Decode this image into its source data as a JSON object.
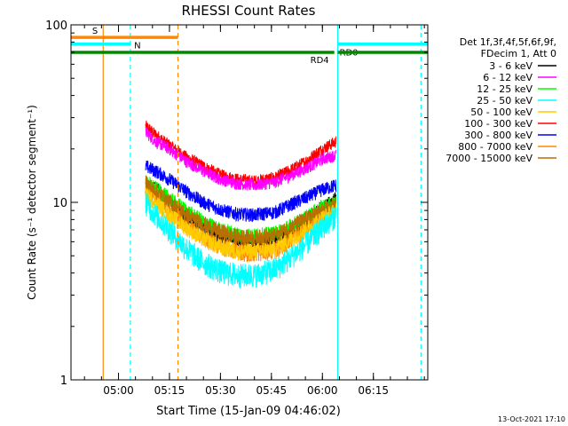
{
  "chart_data": {
    "type": "line",
    "title": "RHESSI Count Rates",
    "xlabel": "Start Time (15-Jan-09 04:46:02)",
    "ylabel": "Count Rate (s⁻¹ detector segment⁻¹)",
    "yscale": "log",
    "ylim": [
      1,
      100
    ],
    "xlim": [
      "04:46:02",
      "06:31:00"
    ],
    "x_ticks": [
      "05:00",
      "05:15",
      "05:30",
      "05:45",
      "06:00",
      "06:15"
    ],
    "y_ticks": [
      "1",
      "10",
      "100"
    ],
    "legend_header": [
      "Det 1f,3f,4f,5f,6f,9f,",
      "FDecim 1, Att 0"
    ],
    "legend_position": "right",
    "grid": false,
    "x_minor_step_minutes": 5,
    "series": [
      {
        "name": "3 - 6 keV",
        "color": "#000000",
        "x": [
          "05:08",
          "05:11",
          "05:15",
          "05:20",
          "05:25",
          "05:30",
          "05:35",
          "05:40",
          "05:46",
          "05:50",
          "05:55",
          "06:00",
          "06:04"
        ],
        "values": [
          11,
          12,
          10,
          8.5,
          7.2,
          6.5,
          6.1,
          6.0,
          6.2,
          6.8,
          7.8,
          9.3,
          10.5
        ]
      },
      {
        "name": "6 - 12 keV",
        "color": "#ff00ff",
        "x": [
          "05:08",
          "05:11",
          "05:15",
          "05:20",
          "05:25",
          "05:30",
          "05:35",
          "05:40",
          "05:46",
          "05:50",
          "05:55",
          "06:00",
          "06:04"
        ],
        "values": [
          25,
          22,
          20,
          17,
          15,
          13.5,
          12.8,
          12.5,
          13,
          14,
          15.5,
          17.5,
          18.5
        ]
      },
      {
        "name": "12 - 25 keV",
        "color": "#00ff00",
        "x": [
          "05:08",
          "05:11",
          "05:15",
          "05:20",
          "05:25",
          "05:30",
          "05:35",
          "05:40",
          "05:46",
          "05:50",
          "05:55",
          "06:00",
          "06:04"
        ],
        "values": [
          13,
          12,
          10.5,
          9,
          7.8,
          7,
          6.6,
          6.5,
          6.7,
          7.3,
          8.2,
          9.5,
          10
        ]
      },
      {
        "name": "25 - 50 keV",
        "color": "#00ffff",
        "x": [
          "05:08",
          "05:11",
          "05:15",
          "05:20",
          "05:25",
          "05:30",
          "05:35",
          "05:40",
          "05:46",
          "05:50",
          "05:55",
          "06:00",
          "06:04"
        ],
        "values": [
          10,
          8.5,
          7,
          5.5,
          4.6,
          4.1,
          3.9,
          3.9,
          4.2,
          4.8,
          5.8,
          7.2,
          8.5
        ]
      },
      {
        "name": "50 - 100 keV",
        "color": "#ffcc00",
        "x": [
          "05:08",
          "05:11",
          "05:15",
          "05:20",
          "05:25",
          "05:30",
          "05:35",
          "05:40",
          "05:46",
          "05:50",
          "05:55",
          "06:00",
          "06:04"
        ],
        "values": [
          11,
          10,
          8.5,
          7.2,
          6.2,
          5.6,
          5.3,
          5.3,
          5.5,
          6.1,
          7,
          8.2,
          9
        ]
      },
      {
        "name": "100 - 300 keV",
        "color": "#ff0000",
        "x": [
          "05:08",
          "05:11",
          "05:15",
          "05:20",
          "05:25",
          "05:30",
          "05:35",
          "05:40",
          "05:46",
          "05:50",
          "05:55",
          "06:00",
          "06:04"
        ],
        "values": [
          27,
          24,
          21,
          18,
          16,
          14.3,
          13.5,
          13.2,
          13.8,
          15,
          17,
          20,
          22
        ]
      },
      {
        "name": "300 - 800 keV",
        "color": "#0000ff",
        "x": [
          "05:08",
          "05:11",
          "05:15",
          "05:20",
          "05:25",
          "05:30",
          "05:35",
          "05:40",
          "05:46",
          "05:50",
          "05:55",
          "06:00",
          "06:04"
        ],
        "values": [
          16,
          15,
          13.5,
          11.5,
          10,
          9.1,
          8.6,
          8.5,
          8.8,
          9.6,
          10.6,
          11.8,
          12.5
        ]
      },
      {
        "name": "800 - 7000 keV",
        "color": "#ff8800",
        "x": [
          "05:08",
          "05:11",
          "05:15",
          "05:20",
          "05:25",
          "05:30",
          "05:35",
          "05:40",
          "05:46",
          "05:50",
          "05:55",
          "06:00",
          "06:04"
        ],
        "values": [
          12,
          10.5,
          9,
          7.5,
          6.4,
          5.7,
          5.3,
          5.2,
          5.4,
          6,
          7,
          8.2,
          9.2
        ]
      },
      {
        "name": "7000 - 15000 keV",
        "color": "#b86e00",
        "x": [
          "05:08",
          "05:11",
          "05:15",
          "05:20",
          "05:25",
          "05:30",
          "05:35",
          "05:40",
          "05:46",
          "05:50",
          "05:55",
          "06:00",
          "06:04"
        ],
        "values": [
          13,
          11.5,
          10,
          8.5,
          7.5,
          6.8,
          6.4,
          6.3,
          6.5,
          7.1,
          8,
          9,
          9.8
        ]
      }
    ],
    "annotations": [
      {
        "label": "S",
        "color": "#ff8800",
        "x_start": "04:46:02",
        "x_end": "05:17:30",
        "y": 85
      },
      {
        "label": "N",
        "color": "#00ffff",
        "x_start": "04:46:02",
        "x_end": "05:03:30",
        "y": 78
      },
      {
        "label": "RD0",
        "color": "#00ffff",
        "x_start": "06:04:30",
        "x_end": "06:31:00",
        "y": 78
      },
      {
        "label": "RD4",
        "color": "#008800",
        "x_start": "04:46:02",
        "x_end": "06:03:30",
        "y": 70
      },
      {
        "label": "",
        "color": "#008800",
        "x_start": "06:04:30",
        "x_end": "06:31:00",
        "y": 70
      }
    ],
    "vlines": [
      {
        "x": "04:55:30",
        "color": "#ff8800",
        "style": "solid"
      },
      {
        "x": "05:03:30",
        "color": "#00ffff",
        "style": "dashed"
      },
      {
        "x": "05:17:30",
        "color": "#ff8800",
        "style": "dashed"
      },
      {
        "x": "06:04:30",
        "color": "#00ffff",
        "style": "solid"
      },
      {
        "x": "06:29:00",
        "color": "#00ffff",
        "style": "dashed"
      }
    ]
  },
  "footer_timestamp": "13-Oct-2021 17:10"
}
